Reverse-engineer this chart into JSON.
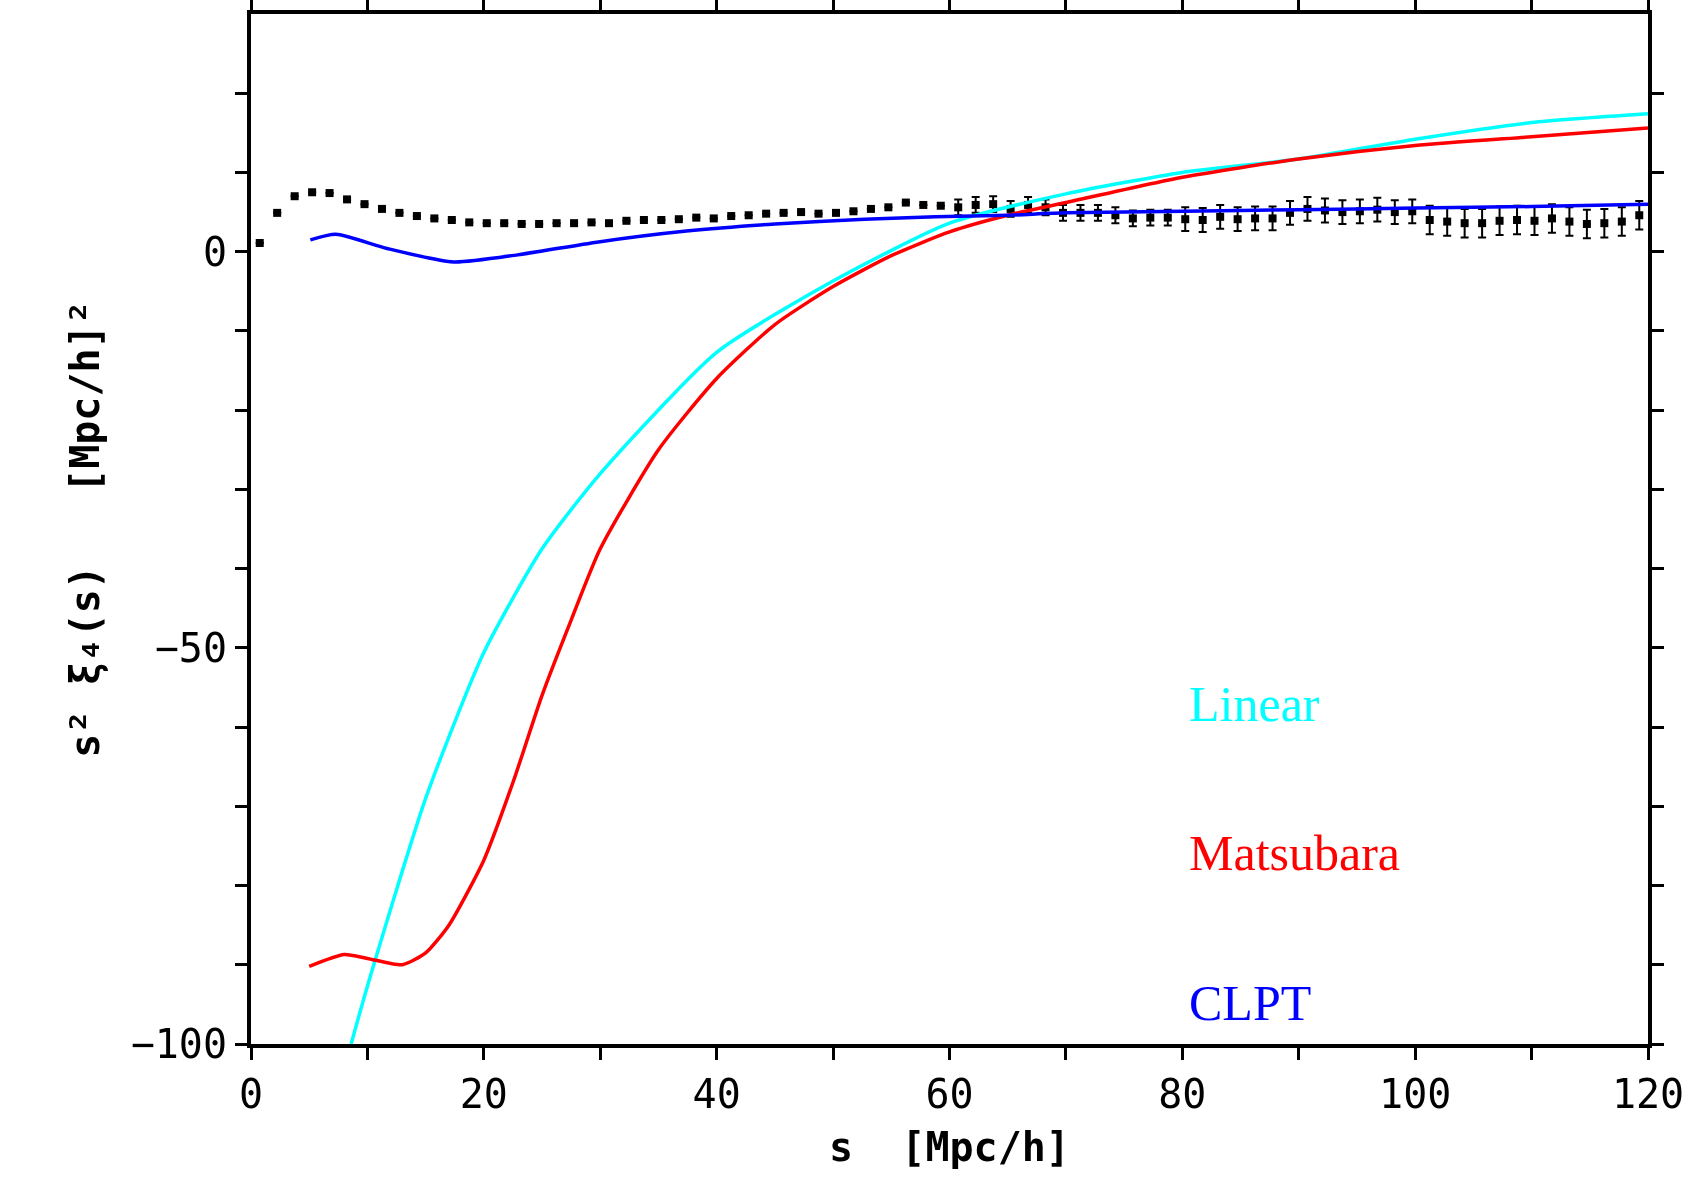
{
  "chart_data": {
    "type": "line",
    "xlabel": "s  [Mpc/h]",
    "ylabel": "s² ξ₄(s)   [Mpc/h]²",
    "xlim": [
      0,
      120
    ],
    "ylim": [
      -100,
      30
    ],
    "xticks": [
      0,
      {
        "value": 10,
        "label": null
      },
      20,
      {
        "value": 30,
        "label": null
      },
      40,
      {
        "value": 50,
        "label": null
      },
      60,
      {
        "value": 70,
        "label": null
      },
      80,
      {
        "value": 90,
        "label": null
      },
      100,
      {
        "value": 110,
        "label": null
      },
      120
    ],
    "yticks": [
      -100,
      {
        "value": -90,
        "label": null
      },
      {
        "value": -80,
        "label": null
      },
      {
        "value": -70,
        "label": null
      },
      {
        "value": -60,
        "label": null
      },
      -50,
      {
        "value": -40,
        "label": null
      },
      {
        "value": -30,
        "label": null
      },
      {
        "value": -20,
        "label": null
      },
      {
        "value": -10,
        "label": null
      },
      0,
      {
        "value": 10,
        "label": null
      },
      {
        "value": 20,
        "label": null
      }
    ],
    "grid": false,
    "legend": "bottom right",
    "line_style": "solid",
    "marker": "none",
    "series": [
      {
        "type": "scatter",
        "marker": "square",
        "color": "#000000",
        "x": [
          0.75,
          2.25,
          3.75,
          5.25,
          6.75,
          8.25,
          9.75,
          11.25,
          12.75,
          14.25,
          15.75,
          17.25,
          18.75,
          20.25,
          21.75,
          23.25,
          24.75,
          26.25,
          27.75,
          29.25,
          30.75,
          32.25,
          33.75,
          35.25,
          36.75,
          38.25,
          39.75,
          41.25,
          42.75,
          44.25,
          45.75,
          47.25,
          48.75,
          50.25,
          51.75,
          53.25,
          54.75,
          56.25,
          57.75,
          59.25,
          60.75,
          62.25,
          63.75,
          65.25,
          66.75,
          68.25,
          69.75,
          71.25,
          72.75,
          74.25,
          75.75,
          77.25,
          78.75,
          80.25,
          81.75,
          83.25,
          84.75,
          86.25,
          87.75,
          89.25,
          90.75,
          92.25,
          93.75,
          95.25,
          96.75,
          98.25,
          99.75,
          101.25,
          102.75,
          104.25,
          105.75,
          107.25,
          108.75,
          110.25,
          111.75,
          113.25,
          114.75,
          116.25,
          117.75,
          119.25
        ],
        "values": [
          1.1,
          4.9,
          7.0,
          7.5,
          7.4,
          6.6,
          6.0,
          5.4,
          4.9,
          4.5,
          4.2,
          4.0,
          3.7,
          3.6,
          3.6,
          3.5,
          3.5,
          3.6,
          3.6,
          3.7,
          3.6,
          3.9,
          4.0,
          4.0,
          4.1,
          4.3,
          4.2,
          4.5,
          4.6,
          4.8,
          4.9,
          5.0,
          4.8,
          4.9,
          5.1,
          5.4,
          5.6,
          6.2,
          5.9,
          5.8,
          5.6,
          5.9,
          6.0,
          5.4,
          5.9,
          5.6,
          4.9,
          4.9,
          4.9,
          4.6,
          4.2,
          4.3,
          4.3,
          4.1,
          4.0,
          4.4,
          4.1,
          4.2,
          4.2,
          4.9,
          5.4,
          5.2,
          5.0,
          5.1,
          5.3,
          5.0,
          5.1,
          4.0,
          3.8,
          3.6,
          3.6,
          3.9,
          4.0,
          3.9,
          4.2,
          3.8,
          3.5,
          3.6,
          3.8,
          4.6
        ],
        "errors": [
          null,
          null,
          null,
          null,
          null,
          null,
          null,
          null,
          null,
          null,
          null,
          null,
          null,
          null,
          null,
          null,
          null,
          null,
          null,
          null,
          null,
          null,
          null,
          null,
          null,
          null,
          null,
          null,
          null,
          null,
          null,
          null,
          null,
          null,
          null,
          null,
          null,
          null,
          null,
          null,
          1.0,
          1.0,
          1.0,
          1.0,
          1.0,
          1.0,
          1.0,
          1.0,
          1.0,
          1.0,
          1.0,
          1.0,
          1.0,
          1.5,
          1.5,
          1.5,
          1.5,
          1.5,
          1.5,
          1.5,
          1.5,
          1.5,
          1.5,
          1.5,
          1.5,
          1.5,
          1.5,
          1.8,
          1.8,
          1.8,
          1.8,
          1.8,
          1.8,
          1.8,
          1.8,
          1.8,
          1.8,
          1.8,
          1.8,
          1.8
        ]
      },
      {
        "name": "Linear",
        "color": "#00ffff",
        "x": [
          8.6,
          10,
          15,
          20,
          25,
          30,
          40,
          50,
          60,
          70,
          80,
          90,
          100,
          110,
          120
        ],
        "values": [
          -100,
          -92.7,
          -69,
          -50.6,
          -37.5,
          -28,
          -12.7,
          -3.7,
          3.6,
          7.3,
          10,
          11.7,
          14.2,
          16.3,
          17.4
        ]
      },
      {
        "name": "Matsubara",
        "color": "#ff0000",
        "x": [
          5,
          8,
          10,
          13,
          15,
          17,
          20,
          22.5,
          25,
          27.5,
          30,
          35,
          40,
          45,
          50,
          55,
          60,
          65,
          70,
          80,
          90,
          100,
          110,
          120
        ],
        "values": [
          -90.2,
          -88.7,
          -89.2,
          -90,
          -88.5,
          -85,
          -76.8,
          -67,
          -56,
          -46.5,
          -37.5,
          -25,
          -16,
          -9.2,
          -4.4,
          -0.5,
          2.5,
          4.6,
          6.2,
          9.4,
          11.7,
          13.4,
          14.5,
          15.6
        ]
      },
      {
        "name": "CLPT",
        "color": "#0000ff",
        "x": [
          5.1,
          7.3,
          11.7,
          17.4,
          22.9,
          29.7,
          37.4,
          45,
          52.7,
          58.8,
          65,
          70,
          80,
          90,
          100,
          110,
          120
        ],
        "values": [
          1.5,
          2.2,
          0.4,
          -1.3,
          -0.4,
          1.2,
          2.6,
          3.5,
          4.1,
          4.4,
          4.6,
          4.9,
          5.1,
          5.3,
          5.5,
          5.7,
          6.0
        ]
      }
    ]
  }
}
